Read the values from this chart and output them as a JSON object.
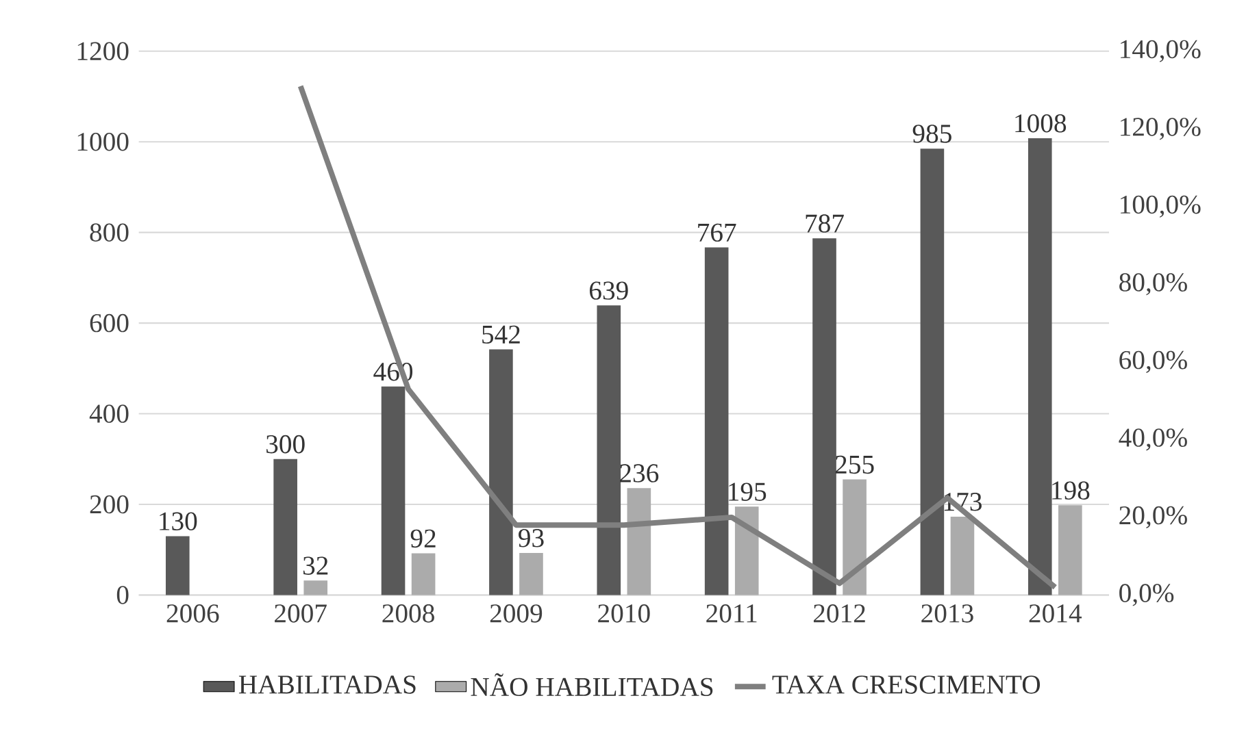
{
  "chart_data": {
    "type": "bar",
    "categories": [
      "2006",
      "2007",
      "2008",
      "2009",
      "2010",
      "2011",
      "2012",
      "2013",
      "2014"
    ],
    "series": [
      {
        "name": "HABILITADAS",
        "color": "#595959",
        "values": [
          130,
          300,
          460,
          542,
          639,
          767,
          787,
          985,
          1008
        ],
        "value_labels": [
          "130",
          "300",
          "460",
          "542",
          "639",
          "767",
          "787",
          "985",
          "1008"
        ]
      },
      {
        "name": "NÃO HABILITADAS",
        "color": "#ababab",
        "values": [
          null,
          32,
          92,
          93,
          236,
          195,
          255,
          173,
          198
        ],
        "value_labels": [
          null,
          "32",
          "92",
          "93",
          "236",
          "195",
          "255",
          "173",
          "198"
        ]
      },
      {
        "name": "TAXA CRESCIMENTO",
        "type": "line",
        "axis": "y2",
        "color": "#7f7f7f",
        "values": [
          null,
          131,
          53,
          18,
          18,
          20,
          3,
          25,
          2
        ]
      }
    ],
    "ylim": [
      0,
      1200
    ],
    "yticks": [
      0,
      200,
      400,
      600,
      800,
      1000,
      1200
    ],
    "y2lim": [
      0,
      140
    ],
    "y2ticks": [
      {
        "value": 0,
        "label": "0,0%"
      },
      {
        "value": 20,
        "label": "20,0%"
      },
      {
        "value": 40,
        "label": "40,0%"
      },
      {
        "value": 60,
        "label": "60,0%"
      },
      {
        "value": 80,
        "label": "80,0%"
      },
      {
        "value": 100,
        "label": "100,0%"
      },
      {
        "value": 120,
        "label": "120,0%"
      },
      {
        "value": 140,
        "label": "140,0%"
      }
    ],
    "grid": "y",
    "legend": "bottom",
    "marker": "none",
    "line_style": "solid"
  }
}
